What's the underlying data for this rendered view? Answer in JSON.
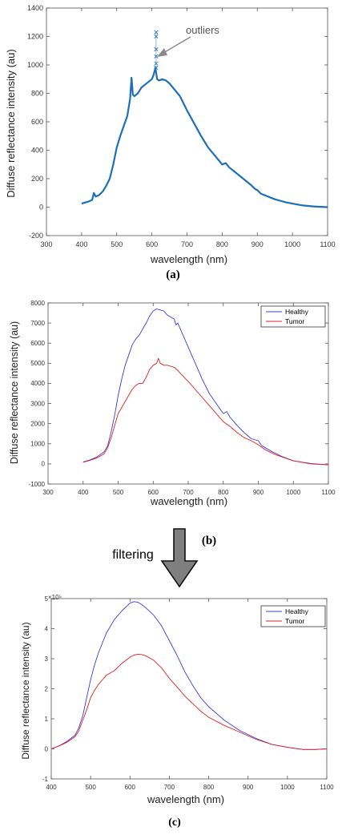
{
  "panels": {
    "a": "(a)",
    "b": "(b)",
    "c": "(c)"
  },
  "filtering_label": "filtering",
  "colors": {
    "single": "#1f6fb8",
    "healthy": "#3b3bdc",
    "tumor": "#e02020",
    "axis": "#555555",
    "arrow": "#8a8a8a"
  },
  "chart_data": [
    {
      "type": "line",
      "title": "",
      "xlabel": "wavelength (nm)",
      "ylabel": "Diffuse reflectance intensity (au)",
      "xlim": [
        300,
        1100
      ],
      "ylim": [
        -200,
        1400
      ],
      "xticks": [
        "300",
        "400",
        "500",
        "600",
        "700",
        "800",
        "900",
        "1000",
        "1100"
      ],
      "yticks": [
        "-200",
        "0",
        "200",
        "400",
        "600",
        "800",
        "1000",
        "1200",
        "1400"
      ],
      "grid": false,
      "annotation": "outliers",
      "outliers": {
        "x": 612,
        "y": [
          980,
          1010,
          1060,
          1110,
          1200,
          1230
        ]
      },
      "series": [
        {
          "x": [
            400,
            420,
            430,
            435,
            440,
            445,
            450,
            460,
            470,
            480,
            490,
            500,
            510,
            520,
            530,
            538,
            542,
            546,
            550,
            560,
            570,
            580,
            590,
            600,
            605,
            610,
            615,
            620,
            630,
            640,
            650,
            660,
            680,
            700,
            720,
            740,
            760,
            780,
            800,
            810,
            820,
            840,
            860,
            880,
            895,
            900,
            910,
            930,
            950,
            980,
            1000,
            1030,
            1060,
            1080,
            1100
          ],
          "y": [
            25,
            40,
            50,
            100,
            75,
            80,
            85,
            110,
            150,
            200,
            300,
            420,
            500,
            570,
            640,
            760,
            910,
            790,
            780,
            800,
            840,
            860,
            880,
            900,
            930,
            980,
            900,
            890,
            900,
            890,
            870,
            840,
            780,
            680,
            590,
            500,
            420,
            360,
            300,
            310,
            280,
            240,
            200,
            160,
            125,
            120,
            95,
            75,
            55,
            35,
            25,
            12,
            5,
            2,
            0
          ]
        }
      ]
    },
    {
      "type": "line",
      "title": "",
      "xlabel": "wavelength (nm)",
      "ylabel": "Diffuse reflectance intensity (au)",
      "xlim": [
        300,
        1100
      ],
      "ylim": [
        -1000,
        8000
      ],
      "xticks": [
        "300",
        "400",
        "500",
        "600",
        "700",
        "800",
        "900",
        "1000",
        "1100"
      ],
      "yticks": [
        "-1000",
        "0",
        "1000",
        "2000",
        "3000",
        "4000",
        "5000",
        "6000",
        "7000",
        "8000"
      ],
      "grid": false,
      "legend": "top-right",
      "series": [
        {
          "name": "Healthy",
          "x": [
            400,
            420,
            440,
            460,
            470,
            480,
            490,
            500,
            510,
            520,
            530,
            540,
            550,
            560,
            570,
            580,
            590,
            600,
            610,
            620,
            630,
            640,
            650,
            660,
            665,
            670,
            680,
            700,
            720,
            740,
            760,
            780,
            800,
            810,
            820,
            840,
            860,
            880,
            900,
            910,
            940,
            970,
            1000,
            1050,
            1100
          ],
          "y": [
            100,
            200,
            350,
            600,
            900,
            1600,
            2400,
            3400,
            4200,
            4900,
            5400,
            5900,
            6200,
            6400,
            6700,
            7000,
            7350,
            7600,
            7700,
            7650,
            7600,
            7400,
            7300,
            7200,
            6900,
            7000,
            6600,
            5800,
            5000,
            4200,
            3500,
            3000,
            2500,
            2600,
            2300,
            1900,
            1550,
            1250,
            1150,
            900,
            600,
            350,
            150,
            20,
            -50
          ]
        },
        {
          "name": "Tumor",
          "x": [
            400,
            420,
            440,
            460,
            470,
            480,
            490,
            500,
            510,
            520,
            530,
            540,
            550,
            560,
            570,
            580,
            590,
            600,
            610,
            615,
            620,
            630,
            640,
            650,
            660,
            670,
            680,
            700,
            720,
            740,
            760,
            780,
            800,
            820,
            840,
            860,
            880,
            900,
            920,
            950,
            1000,
            1050,
            1100
          ],
          "y": [
            80,
            180,
            300,
            500,
            800,
            1300,
            1900,
            2500,
            2800,
            3100,
            3400,
            3700,
            3900,
            4000,
            4000,
            4300,
            4700,
            4900,
            5000,
            5250,
            5000,
            4900,
            4900,
            4850,
            4800,
            4650,
            4450,
            4100,
            3700,
            3300,
            2900,
            2500,
            2100,
            1850,
            1550,
            1300,
            1150,
            950,
            700,
            450,
            150,
            0,
            -50
          ]
        }
      ]
    },
    {
      "type": "line",
      "title": "",
      "xlabel": "wavelength (nm)",
      "ylabel": "Diffuse reflectance intensity (au)",
      "xlim": [
        400,
        1100
      ],
      "ylim": [
        -1,
        5
      ],
      "xticks": [
        "400",
        "500",
        "600",
        "700",
        "800",
        "900",
        "1000",
        "1100"
      ],
      "yticks": [
        "-1",
        "0",
        "1",
        "2",
        "3",
        "4",
        "5"
      ],
      "y_multiplier": "×10⁵",
      "grid": false,
      "legend": "top-right",
      "series": [
        {
          "name": "Healthy",
          "x": [
            400,
            420,
            440,
            460,
            470,
            480,
            490,
            500,
            510,
            520,
            540,
            560,
            580,
            600,
            610,
            620,
            630,
            640,
            660,
            680,
            700,
            720,
            740,
            760,
            780,
            800,
            840,
            880,
            920,
            960,
            1000,
            1040,
            1070,
            1100
          ],
          "y": [
            0,
            0.1,
            0.25,
            0.45,
            0.7,
            1.1,
            1.7,
            2.3,
            2.8,
            3.2,
            3.85,
            4.3,
            4.6,
            4.85,
            4.9,
            4.88,
            4.8,
            4.7,
            4.45,
            4.1,
            3.6,
            3.1,
            2.55,
            2.1,
            1.7,
            1.4,
            0.95,
            0.6,
            0.35,
            0.15,
            0.05,
            -0.02,
            -0.02,
            0
          ]
        },
        {
          "name": "Tumor",
          "x": [
            400,
            420,
            440,
            460,
            470,
            480,
            490,
            500,
            510,
            520,
            540,
            560,
            580,
            600,
            610,
            620,
            630,
            640,
            660,
            680,
            700,
            720,
            740,
            760,
            780,
            800,
            840,
            880,
            920,
            960,
            1000,
            1040,
            1070,
            1100
          ],
          "y": [
            0,
            0.1,
            0.22,
            0.4,
            0.6,
            0.95,
            1.3,
            1.7,
            1.95,
            2.15,
            2.45,
            2.6,
            2.85,
            3.05,
            3.12,
            3.15,
            3.14,
            3.1,
            2.95,
            2.7,
            2.35,
            2.05,
            1.75,
            1.5,
            1.25,
            1.05,
            0.78,
            0.55,
            0.32,
            0.15,
            0.05,
            -0.02,
            -0.02,
            0
          ]
        }
      ]
    }
  ]
}
